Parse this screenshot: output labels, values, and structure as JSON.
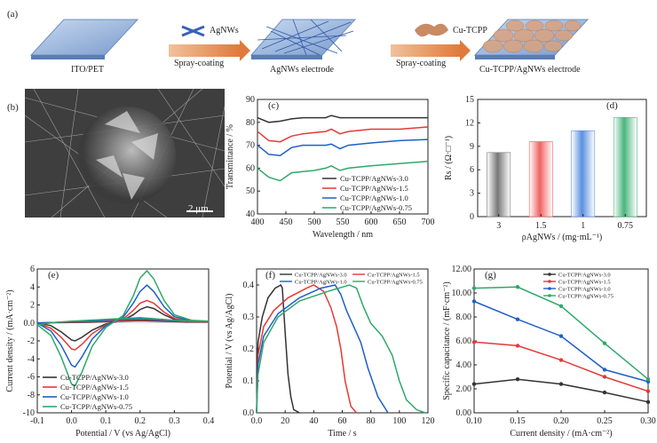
{
  "panel_labels": {
    "a": "(a)",
    "b": "(b)",
    "c": "(c)",
    "d": "(d)",
    "e": "(e)",
    "f": "(f)",
    "g": "(g)"
  },
  "schematic": {
    "substrate_label": "ITO/PET",
    "agnws_legend": "AgNWs",
    "step1": "Spray-coating",
    "electrode1_label": "AgNWs electrode",
    "cutcpp_legend": "Cu-TCPP",
    "step2": "Spray-coating",
    "electrode2_label": "Cu-TCPP/AgNWs electrode"
  },
  "sem": {
    "scale_label": "2 μm"
  },
  "chart_data": [
    {
      "id": "c",
      "type": "line",
      "xlabel": "Wavelength / nm",
      "ylabel": "Transmittance / %",
      "xlim": [
        400,
        700
      ],
      "ylim": [
        40,
        90
      ],
      "xticks": [
        400,
        450,
        500,
        550,
        600,
        650,
        700
      ],
      "yticks": [
        40,
        50,
        60,
        70,
        80,
        90
      ],
      "legend_position": "bottom-right",
      "series": [
        {
          "name": "Cu-TCPP/AgNWs-3.0",
          "color": "#333333",
          "x": [
            400,
            420,
            440,
            460,
            480,
            500,
            520,
            530,
            545,
            560,
            600,
            650,
            700
          ],
          "y": [
            82,
            80,
            80.5,
            81.5,
            82,
            82,
            82,
            83,
            82,
            82,
            82,
            82,
            82
          ]
        },
        {
          "name": "Cu-TCPP/AgNWs-1.5",
          "color": "#e53935",
          "x": [
            400,
            420,
            440,
            460,
            480,
            500,
            520,
            530,
            545,
            560,
            600,
            650,
            700
          ],
          "y": [
            76,
            72,
            71.5,
            74,
            75,
            75.5,
            76,
            77,
            75,
            76,
            77,
            77,
            78
          ]
        },
        {
          "name": "Cu-TCPP/AgNWs-1.0",
          "color": "#1e5fc8",
          "x": [
            400,
            420,
            440,
            460,
            480,
            500,
            520,
            530,
            545,
            560,
            600,
            650,
            700
          ],
          "y": [
            70,
            66,
            65.5,
            69,
            70,
            70,
            70,
            70.5,
            68.5,
            70,
            71,
            72,
            72.5
          ]
        },
        {
          "name": "Cu-TCPP/AgNWs-0.75",
          "color": "#2ea86a",
          "x": [
            400,
            420,
            440,
            460,
            480,
            500,
            520,
            530,
            545,
            560,
            600,
            650,
            700
          ],
          "y": [
            60,
            56,
            54.5,
            58,
            58.5,
            59,
            60,
            61,
            59,
            60,
            61,
            62,
            63
          ]
        }
      ]
    },
    {
      "id": "d",
      "type": "bar",
      "xlabel": "ρAgNWs / (mg·mL⁻¹)",
      "ylabel": "Rs / (Ω·□⁻¹)",
      "categories": [
        "3",
        "1.5",
        "1",
        "0.75"
      ],
      "values": [
        8.2,
        9.6,
        11.0,
        12.7
      ],
      "colors": [
        "#777777",
        "#f06262",
        "#5a8fe0",
        "#49b57c"
      ],
      "ylim": [
        0,
        15
      ],
      "yticks": [
        0,
        3,
        6,
        9,
        12,
        15
      ]
    },
    {
      "id": "e",
      "type": "line",
      "xlabel": "Potential / V (vs Ag/AgCl)",
      "ylabel": "Current density / (mA·cm⁻²)",
      "xlim": [
        -0.1,
        0.4
      ],
      "ylim": [
        -10,
        6
      ],
      "xticks": [
        -0.1,
        0.0,
        0.1,
        0.2,
        0.3,
        0.4
      ],
      "yticks": [
        -10,
        -8,
        -6,
        -4,
        -2,
        0,
        2,
        4,
        6
      ],
      "legend_position": "bottom-left",
      "series": [
        {
          "name": "Cu-TCPP/AgNWs-3.0",
          "color": "#333333",
          "x": [
            -0.1,
            -0.06,
            -0.03,
            0.0,
            0.01,
            0.03,
            0.06,
            0.1,
            0.15,
            0.18,
            0.2,
            0.22,
            0.24,
            0.27,
            0.3,
            0.35,
            0.4,
            0.35,
            0.3,
            0.25,
            0.2,
            0.15,
            0.1,
            0.05,
            0.0,
            -0.05,
            -0.1
          ],
          "y": [
            0,
            -0.3,
            -1.0,
            -1.9,
            -2.0,
            -1.6,
            -0.8,
            -0.1,
            0.3,
            0.9,
            1.5,
            1.8,
            1.6,
            0.9,
            0.4,
            0.15,
            0.1,
            0.1,
            0.15,
            0.2,
            0.25,
            0.2,
            0.15,
            0.1,
            0.05,
            0.02,
            0
          ]
        },
        {
          "name": "Cu-TCPP/AgNWs-1.5",
          "color": "#e53935",
          "x": [
            -0.1,
            -0.06,
            -0.03,
            0.0,
            0.01,
            0.03,
            0.06,
            0.1,
            0.15,
            0.18,
            0.2,
            0.22,
            0.24,
            0.27,
            0.3,
            0.35,
            0.4,
            0.35,
            0.3,
            0.25,
            0.2,
            0.15,
            0.1,
            0.05,
            0.0,
            -0.05,
            -0.1
          ],
          "y": [
            0,
            -0.6,
            -1.6,
            -2.9,
            -3.0,
            -2.4,
            -1.2,
            -0.2,
            0.4,
            1.4,
            2.2,
            2.5,
            2.2,
            1.2,
            0.5,
            0.2,
            0.1,
            0.1,
            0.2,
            0.3,
            0.35,
            0.3,
            0.2,
            0.15,
            0.1,
            0.05,
            0
          ]
        },
        {
          "name": "Cu-TCPP/AgNWs-1.0",
          "color": "#1e5fc8",
          "x": [
            -0.1,
            -0.06,
            -0.03,
            0.0,
            0.01,
            0.03,
            0.06,
            0.1,
            0.15,
            0.18,
            0.2,
            0.22,
            0.24,
            0.27,
            0.3,
            0.35,
            0.4,
            0.35,
            0.3,
            0.25,
            0.2,
            0.15,
            0.1,
            0.05,
            0.0,
            -0.05,
            -0.1
          ],
          "y": [
            0,
            -0.9,
            -2.5,
            -4.7,
            -4.9,
            -3.8,
            -1.8,
            -0.3,
            0.6,
            2.2,
            3.5,
            4.2,
            3.5,
            1.8,
            0.7,
            0.25,
            0.15,
            0.15,
            0.25,
            0.35,
            0.45,
            0.4,
            0.3,
            0.2,
            0.15,
            0.05,
            0
          ]
        },
        {
          "name": "Cu-TCPP/AgNWs-0.75",
          "color": "#2ea86a",
          "x": [
            -0.1,
            -0.06,
            -0.03,
            0.0,
            0.01,
            0.03,
            0.06,
            0.1,
            0.15,
            0.18,
            0.2,
            0.22,
            0.24,
            0.27,
            0.3,
            0.35,
            0.4,
            0.35,
            0.3,
            0.25,
            0.2,
            0.15,
            0.1,
            0.05,
            0.0,
            -0.05,
            -0.1
          ],
          "y": [
            -0.2,
            -1.4,
            -3.8,
            -6.8,
            -7.0,
            -5.5,
            -2.6,
            -0.5,
            0.8,
            3.0,
            5.0,
            5.8,
            4.9,
            2.5,
            0.9,
            0.3,
            0.2,
            0.2,
            0.3,
            0.45,
            0.6,
            0.5,
            0.4,
            0.3,
            0.2,
            0.05,
            -0.2
          ]
        }
      ]
    },
    {
      "id": "f",
      "type": "line",
      "xlabel": "Time / s",
      "ylabel": "Potential / V (vs Ag/AgCl)",
      "xlim": [
        0,
        120
      ],
      "ylim": [
        0,
        0.45
      ],
      "xticks": [
        0,
        20,
        40,
        60,
        80,
        100,
        120
      ],
      "yticks": [
        0.0,
        0.1,
        0.2,
        0.3,
        0.4
      ],
      "legend_position": "top",
      "series": [
        {
          "name": "Cu-TCPP/AgNWs-3.0",
          "color": "#333333",
          "x": [
            0,
            1,
            4,
            8,
            13,
            17,
            18,
            20,
            22,
            24,
            26,
            30
          ],
          "y": [
            0,
            0.22,
            0.3,
            0.36,
            0.39,
            0.4,
            0.39,
            0.25,
            0.12,
            0.05,
            0.01,
            0
          ]
        },
        {
          "name": "Cu-TCPP/AgNWs-1.5",
          "color": "#e53935",
          "x": [
            0,
            1,
            5,
            12,
            22,
            35,
            40,
            47,
            52,
            56,
            59,
            62,
            66,
            70
          ],
          "y": [
            0,
            0.18,
            0.27,
            0.32,
            0.36,
            0.39,
            0.4,
            0.38,
            0.33,
            0.27,
            0.2,
            0.1,
            0.02,
            0
          ]
        },
        {
          "name": "Cu-TCPP/AgNWs-1.0",
          "color": "#1e5fc8",
          "x": [
            0,
            1,
            5,
            15,
            30,
            45,
            55,
            59,
            63,
            68,
            73,
            78,
            85,
            92
          ],
          "y": [
            0,
            0.15,
            0.24,
            0.31,
            0.36,
            0.39,
            0.4,
            0.37,
            0.32,
            0.27,
            0.22,
            0.14,
            0.05,
            0
          ]
        },
        {
          "name": "Cu-TCPP/AgNWs-0.75",
          "color": "#2ea86a",
          "x": [
            0,
            1,
            5,
            15,
            30,
            50,
            65,
            70,
            75,
            80,
            88,
            95,
            100,
            105,
            112,
            118
          ],
          "y": [
            0,
            0.12,
            0.22,
            0.3,
            0.35,
            0.38,
            0.4,
            0.39,
            0.33,
            0.28,
            0.24,
            0.18,
            0.1,
            0.04,
            0.01,
            0
          ]
        }
      ]
    },
    {
      "id": "g",
      "type": "line",
      "xlabel": "Current density / (mA·cm⁻²)",
      "ylabel": "Specific capacitance / (mF·cm⁻²)",
      "xlim": [
        0.1,
        0.3
      ],
      "ylim": [
        0,
        12
      ],
      "xticks": [
        0.1,
        0.15,
        0.2,
        0.25,
        0.3
      ],
      "yticks": [
        0,
        2,
        4,
        6,
        8,
        10,
        12
      ],
      "legend_position": "top",
      "series": [
        {
          "name": "Cu-TCPP/AgNWs-3.0",
          "color": "#333333",
          "x": [
            0.1,
            0.15,
            0.2,
            0.25,
            0.3
          ],
          "y": [
            2.4,
            2.8,
            2.4,
            1.7,
            0.9
          ]
        },
        {
          "name": "Cu-TCPP/AgNWs-1.5",
          "color": "#e53935",
          "x": [
            0.1,
            0.15,
            0.2,
            0.25,
            0.3
          ],
          "y": [
            5.9,
            5.6,
            4.4,
            3.0,
            1.8
          ]
        },
        {
          "name": "Cu-TCPP/AgNWs-1.0",
          "color": "#1e5fc8",
          "x": [
            0.1,
            0.15,
            0.2,
            0.25,
            0.3
          ],
          "y": [
            9.3,
            7.8,
            6.4,
            3.6,
            2.6
          ]
        },
        {
          "name": "Cu-TCPP/AgNWs-0.75",
          "color": "#2ea86a",
          "x": [
            0.1,
            0.15,
            0.2,
            0.25,
            0.3
          ],
          "y": [
            10.4,
            10.5,
            8.9,
            5.8,
            2.8
          ]
        }
      ]
    }
  ]
}
